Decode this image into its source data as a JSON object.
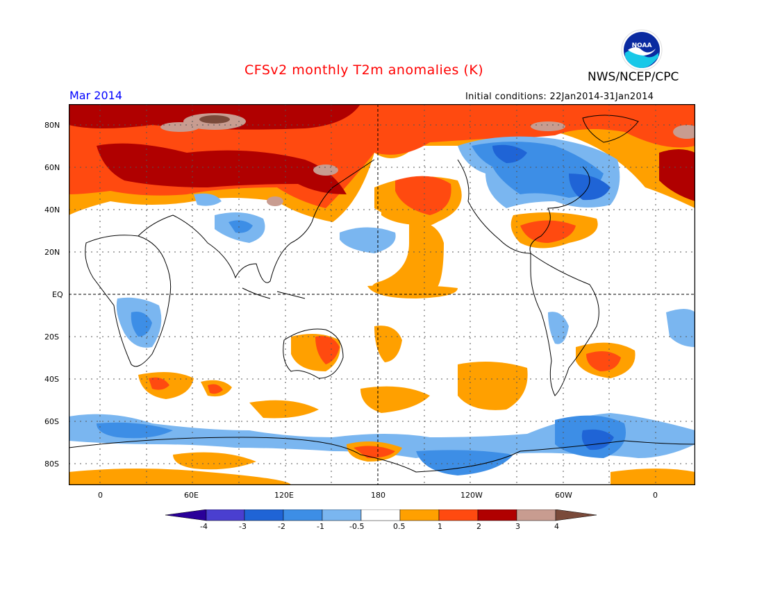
{
  "header": {
    "title": "CFSv2 monthly T2m anomalies (K)",
    "agency": "NWS/NCEP/CPC",
    "month": "Mar 2014",
    "initial_conditions": "Initial conditions: 22Jan2014-31Jan2014",
    "logo_text": "NOAA"
  },
  "map": {
    "lat_labels": [
      "80N",
      "60N",
      "40N",
      "20N",
      "EQ",
      "20S",
      "40S",
      "60S",
      "80S"
    ],
    "lon_labels": [
      "0",
      "60E",
      "120E",
      "180",
      "120W",
      "60W",
      "0"
    ],
    "grid": "dotted every 20° lat / 30° lon",
    "colors": {
      "ocean_land_neutral": "#ffffff",
      "coastline": "#000000"
    }
  },
  "colorbar": {
    "tick_labels": [
      "-4",
      "-3",
      "-2",
      "-1",
      "-0.5",
      "0.5",
      "1",
      "2",
      "3",
      "4"
    ],
    "colors": [
      "#2a0099",
      "#4a3fd0",
      "#1f64d6",
      "#3d8ee6",
      "#7ab6f0",
      "#ffffff",
      "#ffa000",
      "#ff4a10",
      "#b00000",
      "#c89c90",
      "#7a4a3a"
    ]
  }
}
